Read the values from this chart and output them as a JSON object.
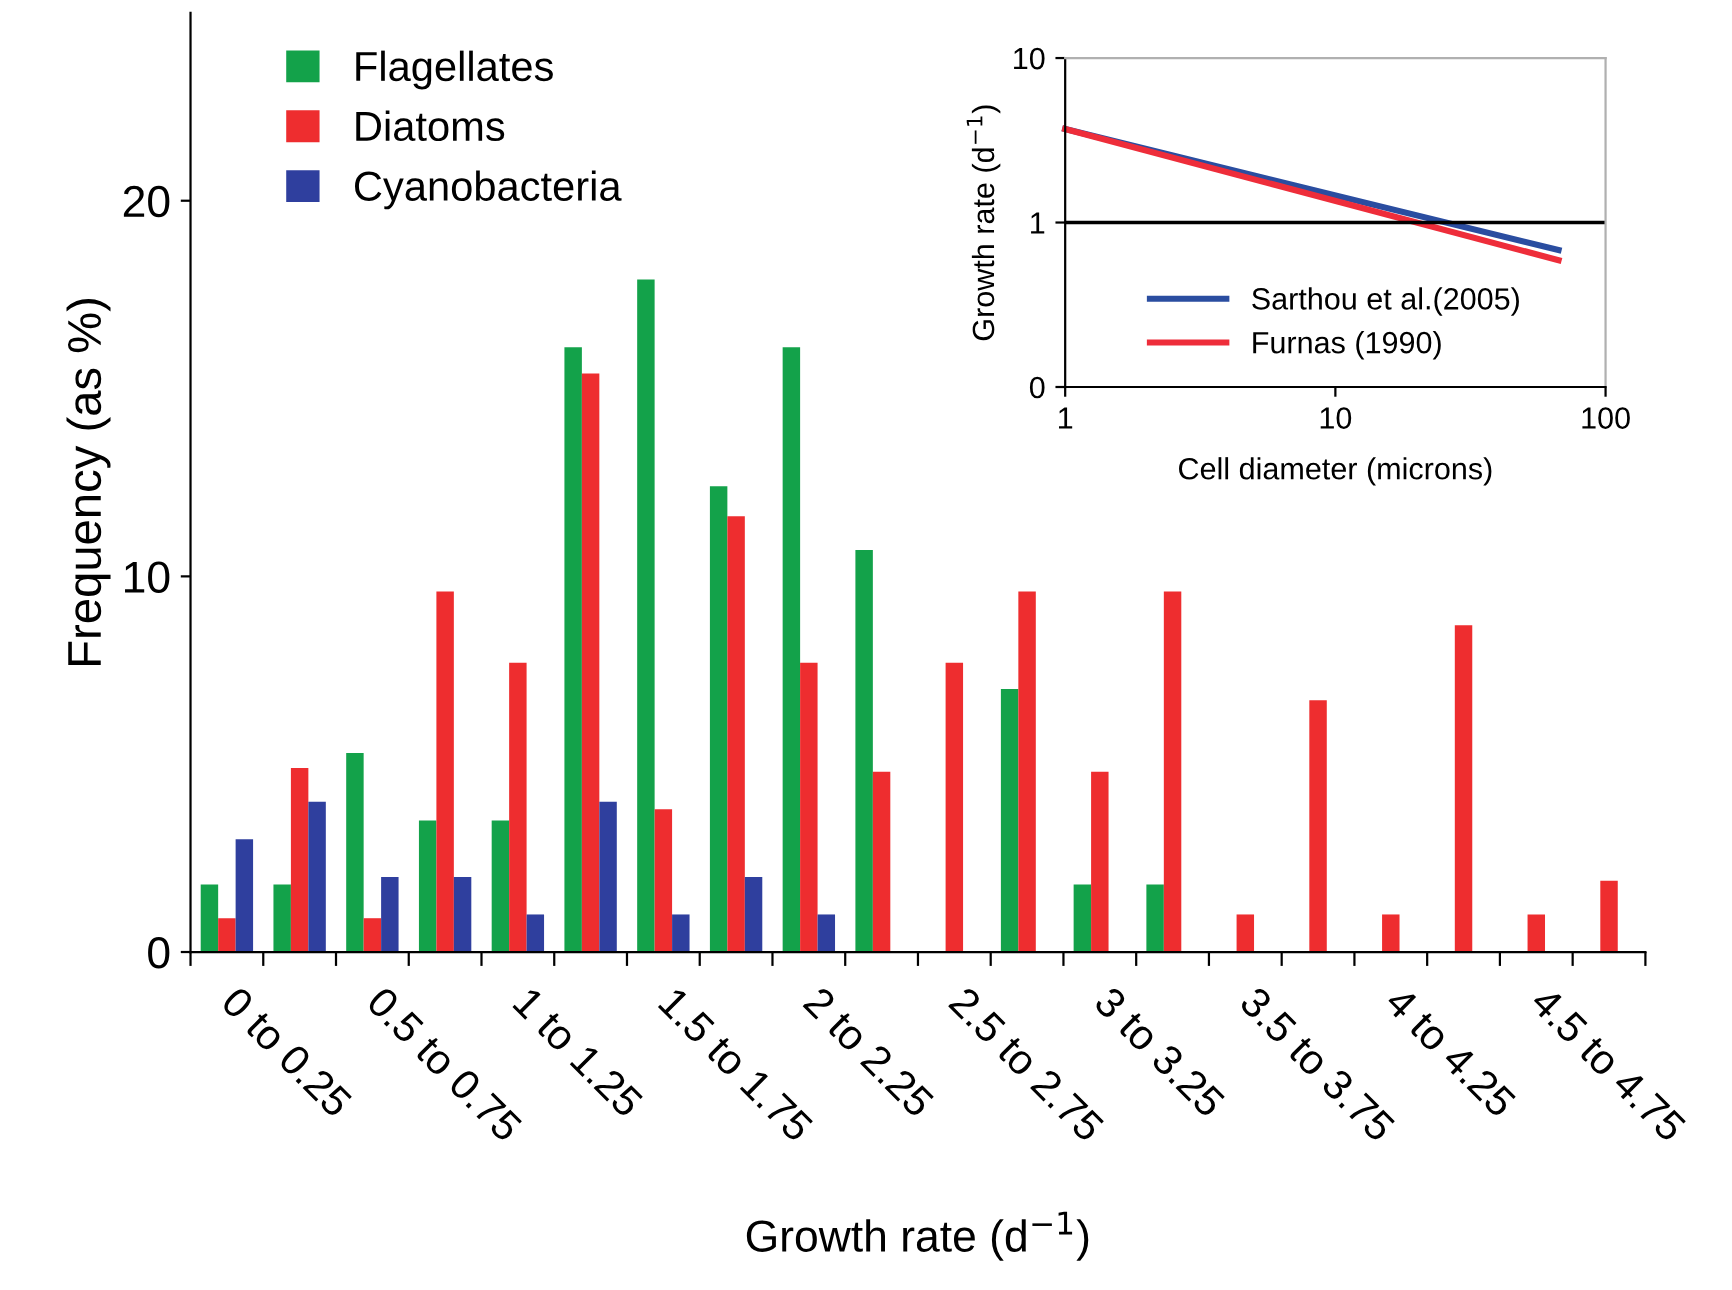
{
  "chart_data": [
    {
      "type": "bar",
      "xlabel": "Growth rate (d$^{−1}$)",
      "ylabel": "Frequency (as %)",
      "categories": [
        "0 to 0.25",
        null,
        "0.5 to 0.75",
        null,
        "1 to 1.25",
        null,
        "1.5 to 1.75",
        null,
        "2 to 2.25",
        null,
        "2.5 to 2.75",
        null,
        "3 to 3.25",
        null,
        "3.5 to 3.75",
        null,
        "4 to 4.25",
        null,
        "4.5 to 4.75",
        null
      ],
      "series": [
        {
          "name": "Flagellates",
          "color": "#13a24a",
          "values": [
            1.8,
            1.8,
            5.3,
            3.5,
            3.5,
            16.1,
            17.9,
            12.4,
            16.1,
            10.7,
            0,
            7.0,
            1.8,
            1.8,
            0,
            0,
            0,
            0,
            0,
            0
          ]
        },
        {
          "name": "Diatoms",
          "color": "#ee2d2f",
          "values": [
            0.9,
            4.9,
            0.9,
            9.6,
            7.7,
            15.4,
            3.8,
            11.6,
            7.7,
            4.8,
            7.7,
            9.6,
            4.8,
            9.6,
            1.0,
            6.7,
            1.0,
            8.7,
            1.0,
            1.9
          ]
        },
        {
          "name": "Cyanobacteria",
          "color": "#2f3f9e",
          "values": [
            3.0,
            4.0,
            2.0,
            2.0,
            1.0,
            4.0,
            1.0,
            2.0,
            1.0,
            0,
            0,
            0,
            0,
            0,
            0,
            0,
            0,
            0,
            0,
            0
          ]
        }
      ],
      "ylim": [
        0,
        25
      ],
      "yticks": [
        0,
        10,
        20
      ],
      "legend": "top left",
      "grid": false
    },
    {
      "type": "line",
      "xlabel": "Cell diameter (microns)",
      "ylabel": "Growth rate (d$^{−1}$)",
      "log": "xy",
      "series": [
        {
          "name": "Sarthou et al.(2005)",
          "color": "#2a4da0",
          "values": [
            3.7,
            0.68
          ]
        },
        {
          "name": "Furnas (1990)",
          "color": "#ee2d3a",
          "values": [
            3.7,
            0.59
          ]
        }
      ],
      "x": [
        1,
        67
      ],
      "xlim": [
        1,
        100
      ],
      "xticks": [
        1,
        10,
        100
      ],
      "ylim": [
        0.1,
        10
      ],
      "yticks": [
        {
          "value": 0.1,
          "label": "0"
        },
        1,
        10
      ],
      "ref_lines": [
        {
          "axis": "y",
          "value": 1,
          "color": "#000000"
        }
      ],
      "legend": "bottom",
      "grid": false
    }
  ]
}
